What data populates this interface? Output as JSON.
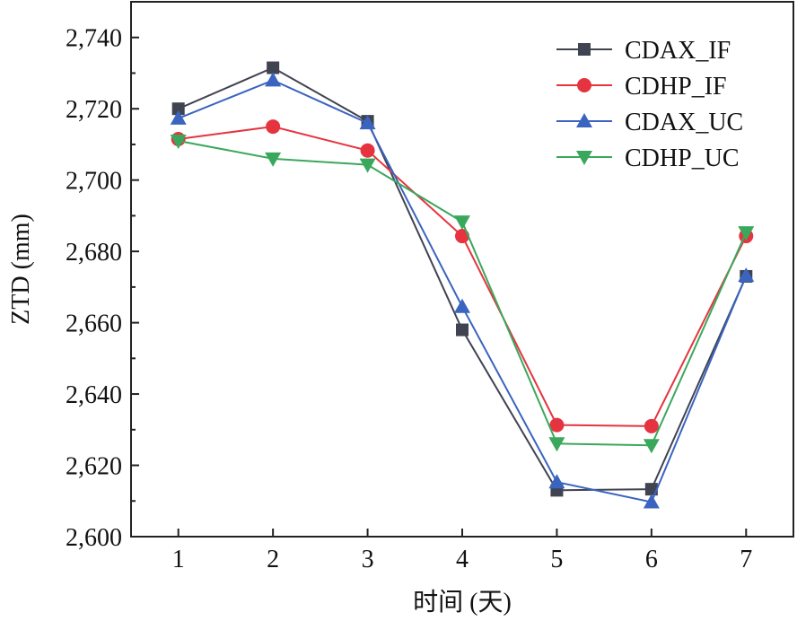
{
  "chart_data": {
    "type": "line",
    "xlabel": "时间 (天)",
    "ylabel": "ZTD (mm)",
    "x": [
      1,
      2,
      3,
      4,
      5,
      6,
      7
    ],
    "xlim": [
      0.5,
      7.5
    ],
    "ylim": [
      2600,
      2750
    ],
    "yticks": [
      2600,
      2620,
      2640,
      2660,
      2680,
      2700,
      2720,
      2740
    ],
    "ytick_labels": [
      "2,600",
      "2,620",
      "2,640",
      "2,660",
      "2,680",
      "2,700",
      "2,720",
      "2,740"
    ],
    "xtick_labels": [
      "1",
      "2",
      "3",
      "4",
      "5",
      "6",
      "7"
    ],
    "grid": false,
    "legend_position": "top-right",
    "series": [
      {
        "name": "CDAX_IF",
        "marker": "square",
        "color": "#404350",
        "values": [
          2720,
          2731.5,
          2716.5,
          2658,
          2613,
          2613.3,
          2673
        ]
      },
      {
        "name": "CDHP_IF",
        "marker": "circle",
        "color": "#e5343f",
        "values": [
          2711.5,
          2715,
          2708.3,
          2684.3,
          2631.3,
          2631,
          2684.3
        ]
      },
      {
        "name": "CDAX_UC",
        "marker": "triangle-up",
        "color": "#3a64c0",
        "values": [
          2717.3,
          2728,
          2716,
          2664.5,
          2615.3,
          2609.7,
          2673.2
        ]
      },
      {
        "name": "CDHP_UC",
        "marker": "triangle-down",
        "color": "#3aa85c",
        "values": [
          2711,
          2706,
          2704.3,
          2688.3,
          2626.1,
          2625.6,
          2685.3
        ]
      }
    ]
  }
}
